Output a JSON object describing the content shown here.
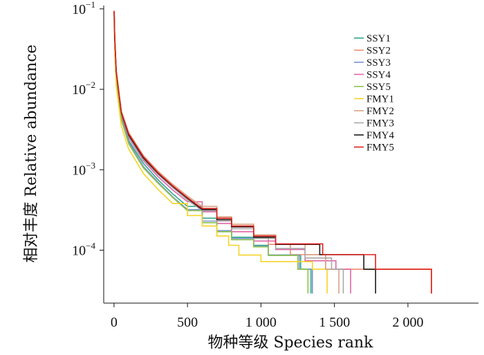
{
  "chart_data": {
    "type": "line",
    "title": "",
    "xlabel": "物种等级  Species rank",
    "ylabel": "相对丰度  Relative abundance",
    "x_ticks": [
      0,
      500,
      1000,
      1500,
      2000
    ],
    "x_tick_labels": [
      "0",
      "500",
      "1 000",
      "1 500",
      "2 000"
    ],
    "xlim": [
      -70,
      2480
    ],
    "y_scale": "log",
    "ylim": [
      2.2e-05,
      0.11
    ],
    "y_ticks": [
      {
        "value": 0.1,
        "base": "10",
        "exp": "−1"
      },
      {
        "value": 0.01,
        "base": "10",
        "exp": "−2"
      },
      {
        "value": 0.001,
        "base": "10",
        "exp": "−3"
      },
      {
        "value": 0.0001,
        "base": "10",
        "exp": "−4"
      }
    ],
    "legend_position": "top-right",
    "series": [
      {
        "name": "SSY1",
        "color": "#2ca58d",
        "points": [
          [
            1,
            0.09
          ],
          [
            5,
            0.04
          ],
          [
            15,
            0.015
          ],
          [
            50,
            0.0045
          ],
          [
            100,
            0.0023
          ],
          [
            200,
            0.0012
          ],
          [
            300,
            0.00075
          ],
          [
            400,
            0.0005
          ],
          [
            500,
            0.00035
          ],
          [
            600,
            0.00025
          ],
          [
            700,
            0.00017
          ],
          [
            800,
            0.000145
          ],
          [
            950,
            0.000115
          ],
          [
            1050,
            8.7e-05
          ],
          [
            1270,
            5.8e-05
          ],
          [
            1340,
            2.9e-05
          ]
        ]
      },
      {
        "name": "SSY2",
        "color": "#f08a6e",
        "points": [
          [
            1,
            0.095
          ],
          [
            5,
            0.045
          ],
          [
            15,
            0.017
          ],
          [
            50,
            0.0052
          ],
          [
            100,
            0.0027
          ],
          [
            200,
            0.0014
          ],
          [
            300,
            0.0009
          ],
          [
            400,
            0.00063
          ],
          [
            500,
            0.00044
          ],
          [
            600,
            0.00033
          ],
          [
            700,
            0.00024
          ],
          [
            800,
            0.000195
          ],
          [
            950,
            0.000145
          ],
          [
            1050,
            0.000118
          ],
          [
            1200,
            8.8e-05
          ],
          [
            1440,
            5.8e-05
          ],
          [
            2160,
            2.9e-05
          ]
        ]
      },
      {
        "name": "SSY3",
        "color": "#7b93d0",
        "points": [
          [
            1,
            0.085
          ],
          [
            5,
            0.038
          ],
          [
            15,
            0.014
          ],
          [
            50,
            0.0043
          ],
          [
            100,
            0.0022
          ],
          [
            200,
            0.0011
          ],
          [
            300,
            0.0007
          ],
          [
            400,
            0.00046
          ],
          [
            500,
            0.00032
          ],
          [
            600,
            0.00023
          ],
          [
            700,
            0.000175
          ],
          [
            800,
            0.00014
          ],
          [
            950,
            0.000112
          ],
          [
            1050,
            8.7e-05
          ],
          [
            1260,
            5.8e-05
          ],
          [
            1350,
            2.9e-05
          ]
        ]
      },
      {
        "name": "SSY4",
        "color": "#e065a6",
        "points": [
          [
            1,
            0.09
          ],
          [
            5,
            0.042
          ],
          [
            15,
            0.016
          ],
          [
            50,
            0.0048
          ],
          [
            100,
            0.0025
          ],
          [
            200,
            0.0013
          ],
          [
            300,
            0.00082
          ],
          [
            400,
            0.00056
          ],
          [
            500,
            0.0004
          ],
          [
            600,
            0.0003
          ],
          [
            700,
            0.000215
          ],
          [
            800,
            0.00017
          ],
          [
            950,
            0.00013
          ],
          [
            1100,
            0.000102
          ],
          [
            1300,
            7.4e-05
          ],
          [
            1510,
            5.8e-05
          ],
          [
            1610,
            2.9e-05
          ]
        ]
      },
      {
        "name": "SSY5",
        "color": "#8bc34a",
        "points": [
          [
            1,
            0.08
          ],
          [
            5,
            0.035
          ],
          [
            15,
            0.013
          ],
          [
            50,
            0.0042
          ],
          [
            100,
            0.0021
          ],
          [
            200,
            0.00105
          ],
          [
            300,
            0.00068
          ],
          [
            400,
            0.00045
          ],
          [
            500,
            0.00031
          ],
          [
            600,
            0.00022
          ],
          [
            700,
            0.00017
          ],
          [
            800,
            0.000135
          ],
          [
            950,
            0.00011
          ],
          [
            1050,
            8.6e-05
          ],
          [
            1250,
            5.8e-05
          ],
          [
            1320,
            2.9e-05
          ]
        ]
      },
      {
        "name": "FMY1",
        "color": "#f5d327",
        "points": [
          [
            1,
            0.075
          ],
          [
            5,
            0.03
          ],
          [
            15,
            0.011
          ],
          [
            50,
            0.0035
          ],
          [
            100,
            0.0018
          ],
          [
            200,
            0.0009
          ],
          [
            300,
            0.00057
          ],
          [
            400,
            0.00038
          ],
          [
            500,
            0.00027
          ],
          [
            600,
            0.0002
          ],
          [
            700,
            0.00015
          ],
          [
            780,
            0.000115
          ],
          [
            850,
            8.7e-05
          ],
          [
            1000,
            7.2e-05
          ],
          [
            1350,
            5.8e-05
          ],
          [
            1450,
            2.9e-05
          ]
        ]
      },
      {
        "name": "FMY2",
        "color": "#d9a384",
        "points": [
          [
            1,
            0.095
          ],
          [
            5,
            0.045
          ],
          [
            15,
            0.017
          ],
          [
            50,
            0.0054
          ],
          [
            100,
            0.0029
          ],
          [
            200,
            0.0015
          ],
          [
            300,
            0.00096
          ],
          [
            400,
            0.00066
          ],
          [
            500,
            0.00047
          ],
          [
            600,
            0.00035
          ],
          [
            700,
            0.00026
          ],
          [
            800,
            0.00021
          ],
          [
            950,
            0.000155
          ],
          [
            1100,
            0.000118
          ],
          [
            1300,
            8.8e-05
          ],
          [
            1440,
            5.8e-05
          ],
          [
            1530,
            2.9e-05
          ]
        ]
      },
      {
        "name": "FMY3",
        "color": "#a8a8a8",
        "points": [
          [
            1,
            0.09
          ],
          [
            5,
            0.043
          ],
          [
            15,
            0.016
          ],
          [
            50,
            0.005
          ],
          [
            100,
            0.0026
          ],
          [
            200,
            0.00135
          ],
          [
            300,
            0.00087
          ],
          [
            400,
            0.0006
          ],
          [
            500,
            0.00042
          ],
          [
            600,
            0.00031
          ],
          [
            700,
            0.00023
          ],
          [
            800,
            0.000185
          ],
          [
            950,
            0.00014
          ],
          [
            1100,
            0.000105
          ],
          [
            1300,
            8e-05
          ],
          [
            1480,
            5.8e-05
          ],
          [
            1560,
            2.9e-05
          ]
        ]
      },
      {
        "name": "FMY4",
        "color": "#1a1a1a",
        "points": [
          [
            1,
            0.092
          ],
          [
            5,
            0.044
          ],
          [
            15,
            0.0165
          ],
          [
            50,
            0.0051
          ],
          [
            100,
            0.0027
          ],
          [
            200,
            0.0014
          ],
          [
            300,
            0.0009
          ],
          [
            400,
            0.00062
          ],
          [
            500,
            0.00044
          ],
          [
            600,
            0.00032
          ],
          [
            700,
            0.00024
          ],
          [
            800,
            0.000195
          ],
          [
            950,
            0.000145
          ],
          [
            1100,
            0.000118
          ],
          [
            1400,
            8.8e-05
          ],
          [
            1700,
            5.8e-05
          ],
          [
            1780,
            2.9e-05
          ]
        ]
      },
      {
        "name": "FMY5",
        "color": "#e0201b",
        "points": [
          [
            1,
            0.094
          ],
          [
            5,
            0.045
          ],
          [
            15,
            0.017
          ],
          [
            50,
            0.0052
          ],
          [
            100,
            0.0028
          ],
          [
            200,
            0.00145
          ],
          [
            300,
            0.00092
          ],
          [
            400,
            0.00063
          ],
          [
            500,
            0.00045
          ],
          [
            600,
            0.00033
          ],
          [
            700,
            0.00025
          ],
          [
            800,
            0.0002
          ],
          [
            950,
            0.00015
          ],
          [
            1100,
            0.00012
          ],
          [
            1420,
            8.8e-05
          ],
          [
            1780,
            5.8e-05
          ],
          [
            2160,
            2.9e-05
          ]
        ]
      }
    ]
  }
}
